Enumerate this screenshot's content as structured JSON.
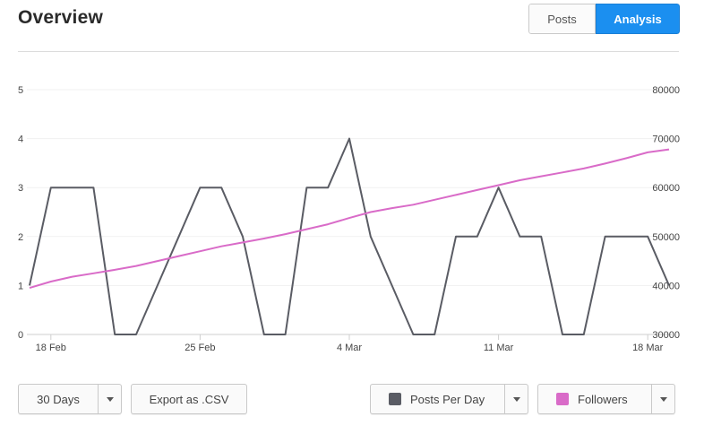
{
  "header": {
    "title": "Overview"
  },
  "view_toggle": {
    "posts_label": "Posts",
    "analysis_label": "Analysis",
    "active": "Analysis"
  },
  "colors": {
    "posts_series": "#5a5c64",
    "followers_series": "#d96bc8",
    "accent": "#1b8ff0"
  },
  "controls": {
    "range_label": "30 Days",
    "export_label": "Export as .CSV",
    "left_series_label": "Posts Per Day",
    "right_series_label": "Followers"
  },
  "chart_data": {
    "type": "line",
    "x": [
      "17 Feb",
      "18 Feb",
      "19 Feb",
      "20 Feb",
      "21 Feb",
      "22 Feb",
      "23 Feb",
      "24 Feb",
      "25 Feb",
      "26 Feb",
      "27 Feb",
      "28 Feb",
      "1 Mar",
      "2 Mar",
      "3 Mar",
      "4 Mar",
      "5 Mar",
      "6 Mar",
      "7 Mar",
      "8 Mar",
      "9 Mar",
      "10 Mar",
      "11 Mar",
      "12 Mar",
      "13 Mar",
      "14 Mar",
      "15 Mar",
      "16 Mar",
      "17 Mar",
      "18 Mar",
      "19 Mar"
    ],
    "x_tick_labels": [
      "18 Feb",
      "25 Feb",
      "4 Mar",
      "11 Mar",
      "18 Mar"
    ],
    "y_left": {
      "lim": [
        0,
        5
      ],
      "ticks": [
        0,
        1,
        2,
        3,
        4,
        5
      ]
    },
    "y_right": {
      "lim": [
        30000,
        80000
      ],
      "ticks": [
        30000,
        40000,
        50000,
        60000,
        70000,
        80000
      ]
    },
    "series": [
      {
        "name": "Posts Per Day",
        "axis": "left",
        "color": "#5a5c64",
        "values": [
          1,
          3,
          3,
          3,
          0,
          0,
          1,
          2,
          3,
          3,
          2,
          0,
          0,
          3,
          3,
          4,
          2,
          1,
          0,
          0,
          2,
          2,
          3,
          2,
          2,
          0,
          0,
          2,
          2,
          2,
          1
        ]
      },
      {
        "name": "Followers",
        "axis": "right",
        "color": "#d96bc8",
        "values": [
          39500,
          40800,
          41800,
          42500,
          43200,
          44000,
          45000,
          46000,
          47000,
          48000,
          48800,
          49600,
          50500,
          51500,
          52500,
          53800,
          55000,
          55800,
          56500,
          57500,
          58500,
          59500,
          60500,
          61500,
          62300,
          63100,
          63900,
          64900,
          66000,
          67200,
          67800
        ]
      }
    ],
    "grid": true,
    "legend": "bottom"
  }
}
